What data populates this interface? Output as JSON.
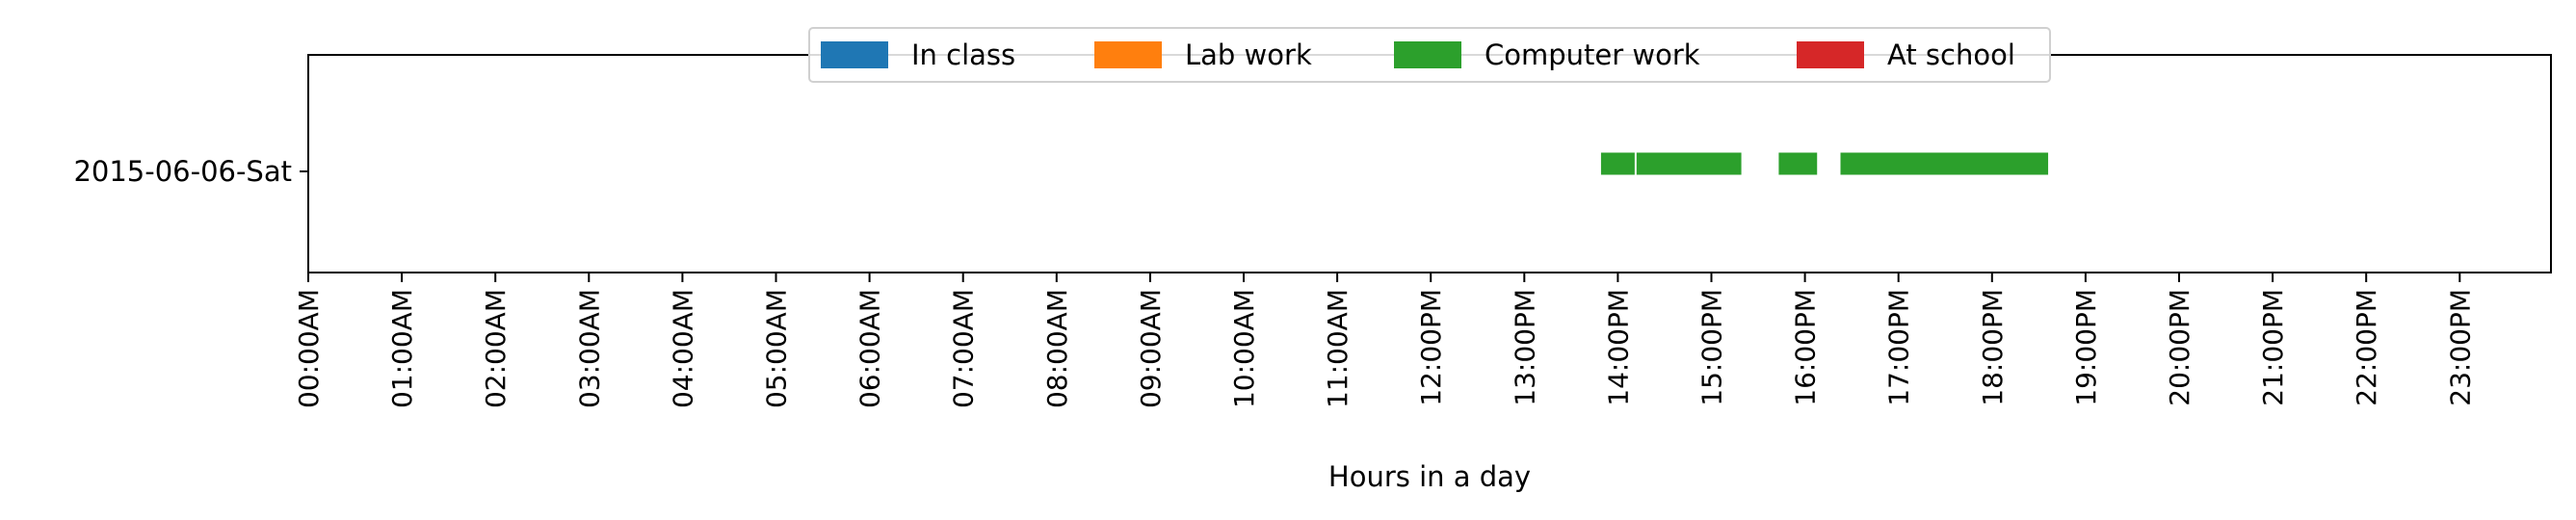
{
  "chart_data": {
    "type": "bar",
    "orientation": "horizontal-timeline",
    "title": "",
    "xlabel": "Hours in a day",
    "ylabel": "",
    "xlim": [
      0,
      24
    ],
    "x_unit": "hours",
    "x_ticks": [
      "00:00AM",
      "01:00AM",
      "02:00AM",
      "03:00AM",
      "04:00AM",
      "05:00AM",
      "06:00AM",
      "07:00AM",
      "08:00AM",
      "09:00AM",
      "10:00AM",
      "11:00AM",
      "12:00PM",
      "13:00PM",
      "14:00PM",
      "15:00PM",
      "16:00PM",
      "17:00PM",
      "18:00PM",
      "19:00PM",
      "20:00PM",
      "21:00PM",
      "22:00PM",
      "23:00PM"
    ],
    "categories": [
      "2015-06-06-Sat"
    ],
    "legend_position": "top-center",
    "grid": false,
    "series": [
      {
        "name": "In class",
        "color": "#1f77b4",
        "intervals": []
      },
      {
        "name": "Lab work",
        "color": "#ff7f0e",
        "intervals": []
      },
      {
        "name": "Computer work",
        "color": "#2ca02c",
        "intervals": [
          {
            "category": "2015-06-06-Sat",
            "start": 13.82,
            "end": 14.18
          },
          {
            "category": "2015-06-06-Sat",
            "start": 14.2,
            "end": 15.32
          },
          {
            "category": "2015-06-06-Sat",
            "start": 15.72,
            "end": 16.13
          },
          {
            "category": "2015-06-06-Sat",
            "start": 16.38,
            "end": 18.6
          }
        ]
      },
      {
        "name": "At school",
        "color": "#d62728",
        "intervals": []
      }
    ]
  }
}
